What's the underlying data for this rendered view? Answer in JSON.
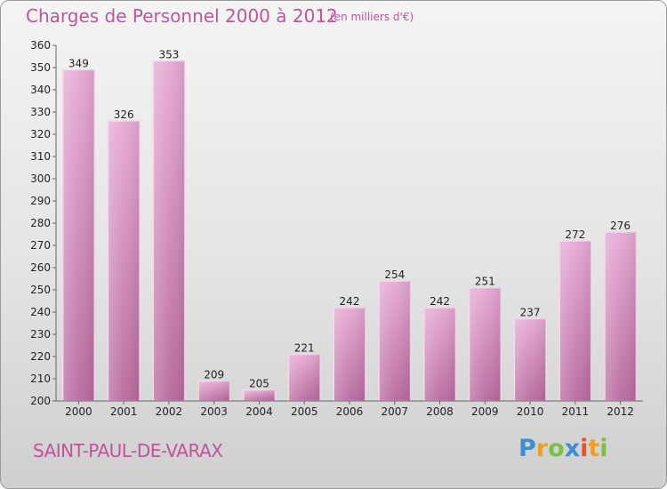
{
  "header": {
    "title": "Charges de Personnel 2000 à 2012",
    "subtitle": "(en milliers d'€)"
  },
  "footer": {
    "commune": "SAINT-PAUL-DE-VARAX",
    "logo_letters": [
      {
        "char": "P",
        "color": "#3a8fd6"
      },
      {
        "char": "r",
        "color": "#f0a020"
      },
      {
        "char": "o",
        "color": "#7bc043"
      },
      {
        "char": "x",
        "color": "#3a8fd6"
      },
      {
        "char": "i",
        "color": "#e8502e"
      },
      {
        "char": "t",
        "color": "#f0a020"
      },
      {
        "char": "i",
        "color": "#7bc043"
      }
    ]
  },
  "chart_data": {
    "type": "bar",
    "title": "Charges de Personnel 2000 à 2012",
    "subtitle": "(en milliers d'€)",
    "categories": [
      "2000",
      "2001",
      "2002",
      "2003",
      "2004",
      "2005",
      "2006",
      "2007",
      "2008",
      "2009",
      "2010",
      "2011",
      "2012"
    ],
    "values": [
      349,
      326,
      353,
      209,
      205,
      221,
      242,
      254,
      242,
      251,
      237,
      272,
      276
    ],
    "ylim": [
      200,
      360
    ],
    "yticks": [
      200,
      210,
      220,
      230,
      240,
      250,
      260,
      270,
      280,
      290,
      300,
      310,
      320,
      330,
      340,
      350,
      360
    ],
    "grid": false,
    "bar_color": "#d98fbf",
    "bar_color_dark": "#b86a9e"
  }
}
